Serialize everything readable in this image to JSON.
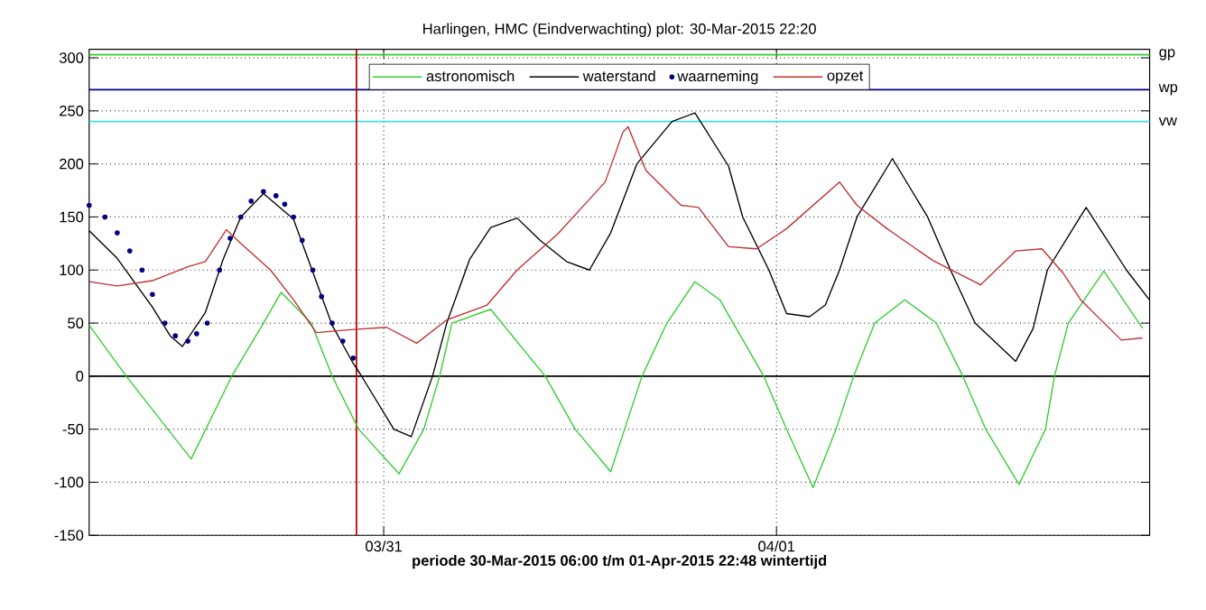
{
  "chart_data": {
    "type": "line",
    "title": "Harlingen, HMC (Eindverwachting) plot: 30-Mar-2015 22:20",
    "xlabel": "periode 30-Mar-2015 06:00 t/m 01-Apr-2015 22:48 wintertijd",
    "xlim": [
      "2015-03-30T06:00",
      "2015-04-01T22:48"
    ],
    "ylim": [
      -150,
      308
    ],
    "xticks": [
      {
        "value": "2015-03-31",
        "label": "03/31"
      },
      {
        "value": "2015-04-01",
        "label": "04/01"
      }
    ],
    "yticks": [
      -150,
      -100,
      -50,
      0,
      50,
      100,
      150,
      200,
      250,
      300
    ],
    "grid": true,
    "legend": "top",
    "marker": "none",
    "series": [
      {
        "name": "astronomisch",
        "color": "#33cc33",
        "x": [
          "2015-03-30T06:00",
          "2015-03-30T08:16",
          "2015-03-30T12:14",
          "2015-03-30T14:43",
          "2015-03-30T16:39",
          "2015-03-30T17:44",
          "2015-03-30T19:34",
          "2015-03-30T20:51",
          "2015-03-30T22:28",
          "2015-03-31T00:56",
          "2015-03-31T02:27",
          "2015-03-31T03:25",
          "2015-03-31T04:10",
          "2015-03-31T06:32",
          "2015-03-31T09:52",
          "2015-03-31T11:42",
          "2015-03-31T13:52",
          "2015-03-31T14:43",
          "2015-03-31T15:47",
          "2015-03-31T17:18",
          "2015-03-31T19:01",
          "2015-03-31T20:32",
          "2015-03-31T23:13",
          "2015-04-01T00:37",
          "2015-04-01T02:14",
          "2015-04-01T03:38",
          "2015-04-01T04:43",
          "2015-04-01T06:00",
          "2015-04-01T07:50",
          "2015-04-01T09:46",
          "2015-04-01T11:23",
          "2015-04-01T12:47",
          "2015-04-01T14:49",
          "2015-04-01T16:26",
          "2015-04-01T16:59",
          "2015-04-01T17:50",
          "2015-04-01T20:00",
          "2015-04-01T22:22"
        ],
        "values": [
          48,
          0,
          -78,
          0,
          50,
          79,
          50,
          0,
          -50,
          -92,
          -50,
          0,
          50,
          63,
          0,
          -50,
          -90,
          -50,
          0,
          50,
          89,
          72,
          0,
          -50,
          -105,
          -50,
          0,
          50,
          72,
          50,
          0,
          -50,
          -102,
          -50,
          0,
          50,
          99,
          45
        ]
      },
      {
        "name": "waterstand",
        "color": "#000000",
        "x": [
          "2015-03-30T06:00",
          "2015-03-30T07:43",
          "2015-03-30T09:52",
          "2015-03-30T10:57",
          "2015-03-30T11:42",
          "2015-03-30T13:06",
          "2015-03-30T14:11",
          "2015-03-30T15:16",
          "2015-03-30T16:39",
          "2015-03-30T18:29",
          "2015-03-30T19:40",
          "2015-03-30T20:51",
          "2015-03-30T22:08",
          "2015-03-30T22:34",
          "2015-03-31T00:37",
          "2015-03-31T01:41",
          "2015-03-31T02:59",
          "2015-03-31T03:51",
          "2015-03-31T05:15",
          "2015-03-31T06:32",
          "2015-03-31T08:09",
          "2015-03-31T09:33",
          "2015-03-31T11:10",
          "2015-03-31T12:34",
          "2015-03-31T13:52",
          "2015-03-31T15:28",
          "2015-03-31T17:37",
          "2015-03-31T19:01",
          "2015-03-31T21:04",
          "2015-03-31T21:56",
          "2015-03-31T23:32",
          "2015-04-01T00:37",
          "2015-04-01T02:01",
          "2015-04-01T02:59",
          "2015-04-01T03:51",
          "2015-04-01T04:55",
          "2015-04-01T07:05",
          "2015-04-01T09:14",
          "2015-04-01T10:38",
          "2015-04-01T12:08",
          "2015-04-01T14:37",
          "2015-04-01T15:41",
          "2015-04-01T16:33",
          "2015-04-01T18:55",
          "2015-04-01T21:23",
          "2015-04-01T22:47"
        ],
        "values": [
          137,
          111,
          65,
          38,
          28,
          60,
          110,
          150,
          172,
          148,
          98,
          48,
          12,
          2,
          -50,
          -57,
          0,
          50,
          110,
          140,
          149,
          128,
          108,
          100,
          135,
          200,
          240,
          248,
          198,
          150,
          100,
          59,
          56,
          67,
          100,
          150,
          205,
          150,
          100,
          50,
          14,
          45,
          100,
          159,
          100,
          72
        ]
      },
      {
        "name": "waarneming",
        "type": "scatter",
        "marker": "circle",
        "color": "#000080",
        "x": [
          "2015-03-30T06:00",
          "2015-03-30T06:58",
          "2015-03-30T07:43",
          "2015-03-30T08:29",
          "2015-03-30T09:14",
          "2015-03-30T09:52",
          "2015-03-30T10:38",
          "2015-03-30T11:16",
          "2015-03-30T12:02",
          "2015-03-30T12:34",
          "2015-03-30T13:13",
          "2015-03-30T13:58",
          "2015-03-30T14:37",
          "2015-03-30T15:16",
          "2015-03-30T15:54",
          "2015-03-30T16:39",
          "2015-03-30T17:25",
          "2015-03-30T17:57",
          "2015-03-30T18:29",
          "2015-03-30T19:01",
          "2015-03-30T19:40",
          "2015-03-30T20:12",
          "2015-03-30T20:51",
          "2015-03-30T21:30",
          "2015-03-30T22:08"
        ],
        "values": [
          161,
          150,
          135,
          118,
          100,
          77,
          50,
          38,
          33,
          40,
          50,
          100,
          130,
          150,
          165,
          174,
          170,
          162,
          150,
          128,
          100,
          75,
          50,
          33,
          17
        ]
      },
      {
        "name": "opzet",
        "color": "#c03030",
        "x": [
          "2015-03-30T06:00",
          "2015-03-30T07:43",
          "2015-03-30T09:52",
          "2015-03-30T12:02",
          "2015-03-30T13:06",
          "2015-03-30T14:23",
          "2015-03-30T15:16",
          "2015-03-30T17:05",
          "2015-03-30T18:29",
          "2015-03-30T19:53",
          "2015-03-30T22:08",
          "2015-03-31T00:11",
          "2015-03-31T02:01",
          "2015-03-31T03:51",
          "2015-03-31T06:19",
          "2015-03-31T08:09",
          "2015-03-31T10:38",
          "2015-03-31T13:32",
          "2015-03-31T14:37",
          "2015-03-31T14:56",
          "2015-03-31T16:01",
          "2015-03-31T18:10",
          "2015-03-31T19:14",
          "2015-03-31T21:04",
          "2015-03-31T22:47",
          "2015-04-01T00:37",
          "2015-04-01T03:51",
          "2015-04-01T04:55",
          "2015-04-01T06:45",
          "2015-04-01T09:33",
          "2015-04-01T12:28",
          "2015-04-01T14:37",
          "2015-04-01T16:13",
          "2015-04-01T17:31",
          "2015-04-01T18:35",
          "2015-04-01T21:04",
          "2015-04-01T22:22"
        ],
        "values": [
          89,
          85,
          90,
          103,
          108,
          138,
          125,
          100,
          72,
          41,
          44,
          46,
          31,
          53,
          67,
          100,
          134,
          183,
          230,
          235,
          194,
          161,
          159,
          122,
          120,
          139,
          183,
          161,
          139,
          109,
          86,
          118,
          120,
          97,
          72,
          34,
          36
        ]
      }
    ],
    "ref_lines": [
      {
        "axis": "y",
        "value": 303,
        "label": "gp",
        "color": "#33cc33"
      },
      {
        "axis": "y",
        "value": 270,
        "label": "wp",
        "color": "#000080"
      },
      {
        "axis": "y",
        "value": 240,
        "label": "vw",
        "color": "#40e0e0"
      },
      {
        "axis": "y",
        "value": 0,
        "color": "#000000"
      },
      {
        "axis": "x",
        "value": "2015-03-30T22:20",
        "color": "#c00000"
      }
    ]
  }
}
